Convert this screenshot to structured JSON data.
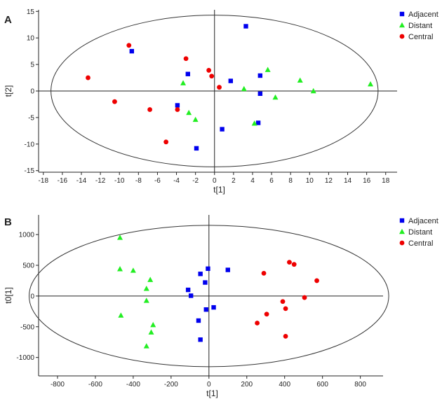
{
  "panel_labels": [
    "A",
    "B"
  ],
  "colors": {
    "Adjacent": "#0000ee",
    "Distant": "#22ee22",
    "Central": "#ee0000"
  },
  "chart_data": [
    {
      "type": "scatter",
      "panel": "A",
      "xlabel": "t[1]",
      "ylabel": "t[2]",
      "xlim": [
        -18.5,
        19.2
      ],
      "ylim": [
        -15.3,
        15.3
      ],
      "xticks": [
        -18,
        -16,
        -14,
        -12,
        -10,
        -8,
        -6,
        -4,
        -2,
        0,
        2,
        4,
        6,
        8,
        10,
        12,
        14,
        16,
        18
      ],
      "yticks": [
        -15,
        -10,
        -5,
        0,
        5,
        10,
        15
      ],
      "ellipse": {
        "center": [
          0,
          0
        ],
        "rx": 17.2,
        "ry": 14.3
      },
      "grid": false,
      "legend": "right",
      "series": [
        {
          "name": "Adjacent",
          "marker": "square",
          "points": [
            [
              -8.7,
              7.5
            ],
            [
              3.3,
              12.2
            ],
            [
              -2.8,
              3.2
            ],
            [
              1.7,
              1.9
            ],
            [
              4.8,
              2.9
            ],
            [
              4.8,
              -0.5
            ],
            [
              4.6,
              -6.0
            ],
            [
              -3.9,
              -2.7
            ],
            [
              0.8,
              -7.2
            ],
            [
              -1.9,
              -10.8
            ]
          ]
        },
        {
          "name": "Distant",
          "marker": "triangle",
          "points": [
            [
              5.6,
              4.0
            ],
            [
              -3.3,
              1.5
            ],
            [
              3.1,
              0.4
            ],
            [
              9.0,
              2.0
            ],
            [
              10.4,
              0.0
            ],
            [
              16.4,
              1.3
            ],
            [
              6.4,
              -1.2
            ],
            [
              -2.7,
              -4.1
            ],
            [
              -2.0,
              -5.4
            ],
            [
              4.2,
              -6.1
            ]
          ]
        },
        {
          "name": "Central",
          "marker": "circle",
          "points": [
            [
              -9.0,
              8.6
            ],
            [
              -3.0,
              6.1
            ],
            [
              -0.6,
              3.9
            ],
            [
              -0.3,
              2.8
            ],
            [
              0.5,
              0.7
            ],
            [
              -13.3,
              2.5
            ],
            [
              -10.5,
              -2.0
            ],
            [
              -6.8,
              -3.5
            ],
            [
              -3.9,
              -3.5
            ],
            [
              -5.1,
              -9.6
            ]
          ]
        }
      ]
    },
    {
      "type": "scatter",
      "panel": "B",
      "xlabel": "t[1]",
      "ylabel": "t0[1]",
      "xlim": [
        -900,
        920
      ],
      "ylim": [
        -1300,
        1320
      ],
      "xticks": [
        -800,
        -600,
        -400,
        -200,
        0,
        200,
        400,
        600,
        800
      ],
      "yticks": [
        -1000,
        -500,
        0,
        500,
        1000
      ],
      "ellipse": {
        "center": [
          0,
          0
        ],
        "rx": 950,
        "ry": 1150
      },
      "grid": false,
      "legend": "right",
      "series": [
        {
          "name": "Adjacent",
          "marker": "square",
          "points": [
            [
              -5,
              445
            ],
            [
              100,
              425
            ],
            [
              -45,
              360
            ],
            [
              -20,
              220
            ],
            [
              -110,
              100
            ],
            [
              -95,
              5
            ],
            [
              -15,
              -220
            ],
            [
              25,
              -185
            ],
            [
              -55,
              -400
            ],
            [
              -45,
              -710
            ]
          ]
        },
        {
          "name": "Distant",
          "marker": "triangle",
          "points": [
            [
              -470,
              950
            ],
            [
              -470,
              440
            ],
            [
              -400,
              415
            ],
            [
              -310,
              265
            ],
            [
              -330,
              120
            ],
            [
              -330,
              -75
            ],
            [
              -465,
              -315
            ],
            [
              -295,
              -470
            ],
            [
              -305,
              -590
            ],
            [
              -330,
              -815
            ]
          ]
        },
        {
          "name": "Central",
          "marker": "circle",
          "points": [
            [
              425,
              550
            ],
            [
              450,
              515
            ],
            [
              290,
              370
            ],
            [
              570,
              250
            ],
            [
              505,
              -25
            ],
            [
              390,
              -90
            ],
            [
              405,
              -205
            ],
            [
              305,
              -295
            ],
            [
              255,
              -440
            ],
            [
              405,
              -655
            ]
          ]
        }
      ]
    }
  ]
}
